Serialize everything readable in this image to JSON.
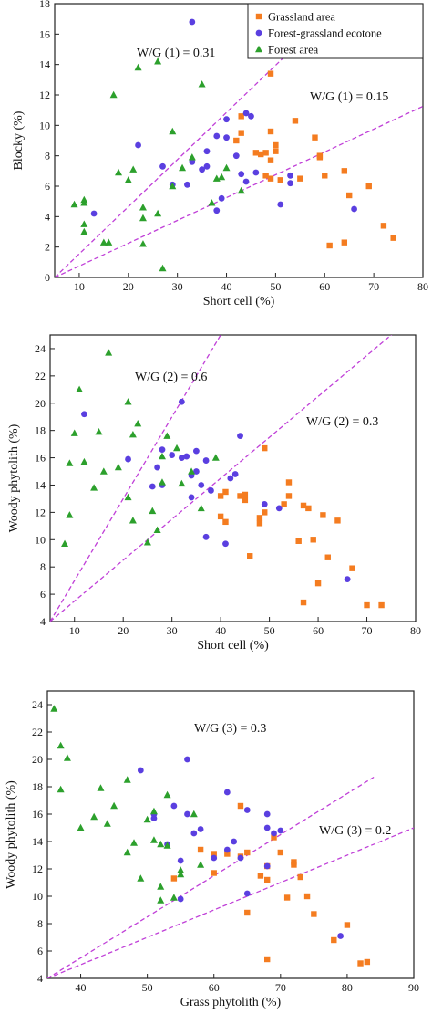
{
  "legend": {
    "entries": [
      {
        "label": "Grassland area",
        "series": "grassland",
        "marker": "square"
      },
      {
        "label": "Forest-grassland ecotone",
        "series": "ecotone",
        "marker": "circle"
      },
      {
        "label": "Forest area",
        "series": "forest",
        "marker": "triangle"
      }
    ],
    "colors": {
      "grassland": "#f47c20",
      "ecotone": "#5a3fe0",
      "forest": "#2ca02c",
      "ratio_line": "#c040d8"
    }
  },
  "chart_data": [
    {
      "type": "scatter",
      "xlabel": "Short cell (%)",
      "ylabel": "Blocky (%)",
      "xlim": [
        5,
        80
      ],
      "ylim": [
        0,
        18
      ],
      "xticks": [
        10,
        20,
        30,
        40,
        50,
        60,
        70,
        80
      ],
      "yticks": [
        0,
        2,
        4,
        6,
        8,
        10,
        12,
        14,
        16,
        18
      ],
      "ratio_lines": [
        {
          "label": "W/G (1) = 0.31",
          "slope": 0.31,
          "x_end": 62
        },
        {
          "label": "W/G (1) = 0.15",
          "slope": 0.15,
          "x_end": 80
        }
      ],
      "series": [
        {
          "name": "Grassland area",
          "key": "grassland",
          "points": [
            [
              42,
              9.0
            ],
            [
              43,
              9.5
            ],
            [
              43,
              10.6
            ],
            [
              46,
              8.2
            ],
            [
              47,
              8.1
            ],
            [
              48,
              6.7
            ],
            [
              48,
              8.2
            ],
            [
              49,
              6.5
            ],
            [
              49,
              7.7
            ],
            [
              49,
              9.6
            ],
            [
              49,
              13.4
            ],
            [
              50,
              8.3
            ],
            [
              50,
              8.7
            ],
            [
              51,
              6.4
            ],
            [
              54,
              10.3
            ],
            [
              55,
              6.5
            ],
            [
              58,
              9.2
            ],
            [
              59,
              7.9
            ],
            [
              59,
              8.0
            ],
            [
              60,
              6.7
            ],
            [
              61,
              2.1
            ],
            [
              64,
              2.3
            ],
            [
              64,
              7.0
            ],
            [
              65,
              5.4
            ],
            [
              69,
              6.0
            ],
            [
              72,
              3.4
            ],
            [
              74,
              2.6
            ]
          ]
        },
        {
          "name": "Forest-grassland ecotone",
          "key": "ecotone",
          "points": [
            [
              13,
              4.2
            ],
            [
              22,
              8.7
            ],
            [
              27,
              7.3
            ],
            [
              29,
              6.1
            ],
            [
              32,
              6.1
            ],
            [
              33,
              7.6
            ],
            [
              33,
              16.8
            ],
            [
              35,
              7.1
            ],
            [
              36,
              7.3
            ],
            [
              36,
              8.3
            ],
            [
              38,
              4.4
            ],
            [
              38,
              9.3
            ],
            [
              39,
              5.2
            ],
            [
              40,
              9.2
            ],
            [
              40,
              10.4
            ],
            [
              42,
              8.0
            ],
            [
              43,
              6.8
            ],
            [
              44,
              6.3
            ],
            [
              44,
              10.8
            ],
            [
              45,
              10.6
            ],
            [
              46,
              6.9
            ],
            [
              51,
              4.8
            ],
            [
              53,
              6.7
            ],
            [
              53,
              6.2
            ],
            [
              66,
              4.5
            ]
          ]
        },
        {
          "name": "Forest area",
          "key": "forest",
          "points": [
            [
              9,
              4.8
            ],
            [
              11,
              3.0
            ],
            [
              11,
              3.5
            ],
            [
              11,
              4.9
            ],
            [
              11,
              5.1
            ],
            [
              15,
              2.3
            ],
            [
              16,
              2.3
            ],
            [
              17,
              12.0
            ],
            [
              18,
              6.9
            ],
            [
              20,
              6.4
            ],
            [
              21,
              7.1
            ],
            [
              22,
              13.8
            ],
            [
              23,
              3.9
            ],
            [
              23,
              4.6
            ],
            [
              23,
              2.2
            ],
            [
              26,
              14.2
            ],
            [
              26,
              4.2
            ],
            [
              27,
              0.6
            ],
            [
              29,
              6.0
            ],
            [
              29,
              9.6
            ],
            [
              31,
              7.2
            ],
            [
              33,
              7.9
            ],
            [
              35,
              12.7
            ],
            [
              37,
              4.9
            ],
            [
              38,
              6.5
            ],
            [
              39,
              6.6
            ],
            [
              40,
              7.2
            ],
            [
              43,
              5.7
            ]
          ]
        }
      ]
    },
    {
      "type": "scatter",
      "xlabel": "Short cell (%)",
      "ylabel": "Woody phytolith (%)",
      "xlim": [
        5,
        80
      ],
      "ylim": [
        4,
        25
      ],
      "xticks": [
        10,
        20,
        30,
        40,
        50,
        60,
        70,
        80
      ],
      "yticks": [
        4,
        6,
        8,
        10,
        12,
        14,
        16,
        18,
        20,
        22,
        24
      ],
      "ratio_lines": [
        {
          "label": "W/G (2) = 0.6",
          "slope": 0.6,
          "x_end": 47
        },
        {
          "label": "W/G (2) = 0.3",
          "slope": 0.3,
          "x_end": 80
        }
      ],
      "series": [
        {
          "name": "Grassland area",
          "key": "grassland",
          "points": [
            [
              40,
              11.7
            ],
            [
              40,
              13.2
            ],
            [
              41,
              13.5
            ],
            [
              41,
              11.3
            ],
            [
              44,
              13.2
            ],
            [
              45,
              13.3
            ],
            [
              45,
              12.9
            ],
            [
              46,
              8.8
            ],
            [
              48,
              11.6
            ],
            [
              48,
              11.2
            ],
            [
              49,
              12.0
            ],
            [
              49,
              16.7
            ],
            [
              53,
              12.6
            ],
            [
              54,
              13.2
            ],
            [
              54,
              14.2
            ],
            [
              56,
              9.9
            ],
            [
              57,
              12.5
            ],
            [
              57,
              5.4
            ],
            [
              58,
              12.3
            ],
            [
              59,
              10.0
            ],
            [
              60,
              6.8
            ],
            [
              61,
              11.8
            ],
            [
              62,
              8.7
            ],
            [
              64,
              11.4
            ],
            [
              67,
              7.9
            ],
            [
              70,
              5.2
            ],
            [
              73,
              5.2
            ]
          ]
        },
        {
          "name": "Forest-grassland ecotone",
          "key": "ecotone",
          "points": [
            [
              12,
              19.2
            ],
            [
              21,
              15.9
            ],
            [
              26,
              13.9
            ],
            [
              27,
              15.3
            ],
            [
              28,
              14.0
            ],
            [
              28,
              16.6
            ],
            [
              30,
              16.2
            ],
            [
              32,
              20.1
            ],
            [
              32,
              16.0
            ],
            [
              33,
              16.1
            ],
            [
              34,
              13.1
            ],
            [
              34,
              14.7
            ],
            [
              35,
              15.0
            ],
            [
              35,
              16.5
            ],
            [
              36,
              14.0
            ],
            [
              37,
              10.2
            ],
            [
              37,
              15.8
            ],
            [
              38,
              13.6
            ],
            [
              41,
              9.7
            ],
            [
              42,
              14.5
            ],
            [
              43,
              14.8
            ],
            [
              44,
              17.6
            ],
            [
              49,
              12.6
            ],
            [
              52,
              12.3
            ],
            [
              66,
              7.1
            ]
          ]
        },
        {
          "name": "Forest area",
          "key": "forest",
          "points": [
            [
              8,
              9.7
            ],
            [
              9,
              11.8
            ],
            [
              9,
              15.6
            ],
            [
              10,
              17.8
            ],
            [
              11,
              21.0
            ],
            [
              12,
              15.7
            ],
            [
              14,
              13.8
            ],
            [
              15,
              17.9
            ],
            [
              16,
              15.0
            ],
            [
              17,
              23.7
            ],
            [
              19,
              15.3
            ],
            [
              21,
              13.1
            ],
            [
              21,
              20.1
            ],
            [
              22,
              11.4
            ],
            [
              22,
              17.7
            ],
            [
              23,
              18.5
            ],
            [
              25,
              9.8
            ],
            [
              26,
              12.1
            ],
            [
              27,
              10.7
            ],
            [
              28,
              14.2
            ],
            [
              28,
              16.1
            ],
            [
              29,
              17.6
            ],
            [
              31,
              16.7
            ],
            [
              32,
              14.1
            ],
            [
              34,
              15.0
            ],
            [
              36,
              12.3
            ],
            [
              39,
              16.0
            ]
          ]
        }
      ]
    },
    {
      "type": "scatter",
      "xlabel": "Grass phytolith (%)",
      "ylabel": "Woody phytolith (%)",
      "xlim": [
        35,
        90
      ],
      "ylim": [
        4,
        25
      ],
      "xticks": [
        40,
        50,
        60,
        70,
        80,
        90
      ],
      "yticks": [
        4,
        6,
        8,
        10,
        12,
        14,
        16,
        18,
        20,
        22,
        24
      ],
      "ratio_lines": [
        {
          "label": "W/G (3) = 0.3",
          "slope": 0.3,
          "x_end": 84
        },
        {
          "label": "W/G (3) = 0.2",
          "slope": 0.2,
          "x_end": 90
        }
      ],
      "series": [
        {
          "name": "Grassland area",
          "key": "grassland",
          "points": [
            [
              54,
              11.3
            ],
            [
              58,
              13.4
            ],
            [
              60,
              13.1
            ],
            [
              60,
              11.7
            ],
            [
              62,
              13.1
            ],
            [
              64,
              16.6
            ],
            [
              64,
              12.9
            ],
            [
              65,
              13.2
            ],
            [
              65,
              8.8
            ],
            [
              67,
              11.5
            ],
            [
              68,
              11.2
            ],
            [
              68,
              5.4
            ],
            [
              68,
              12.2
            ],
            [
              69,
              14.3
            ],
            [
              70,
              13.2
            ],
            [
              71,
              9.9
            ],
            [
              72,
              12.3
            ],
            [
              72,
              12.5
            ],
            [
              73,
              11.4
            ],
            [
              74,
              10.0
            ],
            [
              75,
              8.7
            ],
            [
              78,
              6.8
            ],
            [
              80,
              7.9
            ],
            [
              82,
              5.1
            ],
            [
              83,
              5.2
            ]
          ]
        },
        {
          "name": "Forest-grassland ecotone",
          "key": "ecotone",
          "points": [
            [
              49,
              19.2
            ],
            [
              51,
              16.0
            ],
            [
              51,
              15.7
            ],
            [
              53,
              13.8
            ],
            [
              54,
              16.6
            ],
            [
              55,
              9.8
            ],
            [
              55,
              12.6
            ],
            [
              56,
              20.0
            ],
            [
              56,
              16.0
            ],
            [
              57,
              14.6
            ],
            [
              58,
              14.9
            ],
            [
              60,
              12.8
            ],
            [
              62,
              17.6
            ],
            [
              62,
              13.4
            ],
            [
              63,
              14.0
            ],
            [
              64,
              12.8
            ],
            [
              65,
              16.3
            ],
            [
              65,
              10.2
            ],
            [
              68,
              16.0
            ],
            [
              68,
              12.2
            ],
            [
              68,
              15.0
            ],
            [
              69,
              14.6
            ],
            [
              70,
              14.8
            ],
            [
              79,
              7.1
            ]
          ]
        },
        {
          "name": "Forest area",
          "key": "forest",
          "points": [
            [
              36,
              23.7
            ],
            [
              37,
              21.0
            ],
            [
              37,
              17.8
            ],
            [
              38,
              20.1
            ],
            [
              40,
              15.0
            ],
            [
              42,
              15.8
            ],
            [
              43,
              17.9
            ],
            [
              44,
              15.3
            ],
            [
              45,
              16.6
            ],
            [
              47,
              18.5
            ],
            [
              47,
              13.2
            ],
            [
              48,
              13.9
            ],
            [
              49,
              11.3
            ],
            [
              50,
              15.6
            ],
            [
              51,
              14.1
            ],
            [
              51,
              16.2
            ],
            [
              52,
              9.7
            ],
            [
              52,
              10.7
            ],
            [
              53,
              13.7
            ],
            [
              53,
              17.4
            ],
            [
              55,
              11.6
            ],
            [
              55,
              11.9
            ],
            [
              57,
              16.0
            ],
            [
              58,
              12.3
            ],
            [
              54,
              9.9
            ],
            [
              52,
              13.8
            ]
          ]
        }
      ]
    }
  ]
}
